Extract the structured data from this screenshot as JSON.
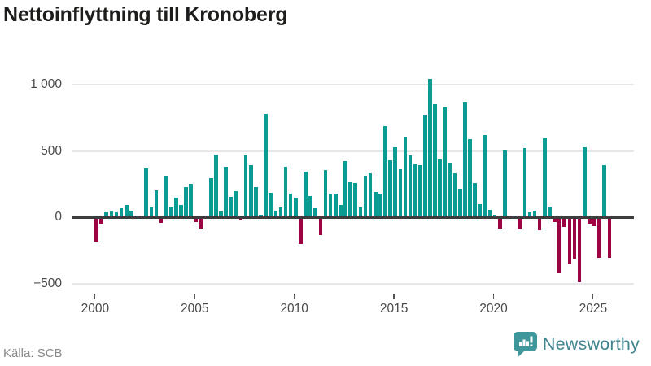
{
  "title": "Nettoinflyttning till Kronoberg",
  "source": "Källa: SCB",
  "logo": {
    "text": "Newsworthy",
    "icon": "newsworthy-bubble-chart-icon"
  },
  "colors": {
    "positive": "#0a9b93",
    "negative": "#9c0342",
    "grid": "#e7e7e7",
    "zero_line": "#3d3d3d",
    "axis_text": "#4a4a4a",
    "title_text": "#1d1d1b",
    "source_text": "#8a8a8a",
    "logo_text": "#40858f",
    "logo_icon": "#3d979b"
  },
  "chart_data": {
    "type": "bar",
    "title": "Nettoinflyttning till Kronoberg",
    "x_unit": "quarter",
    "grid": "horizontal",
    "legend": "none",
    "ylim": [
      -560,
      1120
    ],
    "y_ticks": [
      {
        "value": 1000,
        "label": "1 000"
      },
      {
        "value": 500,
        "label": "500"
      },
      {
        "value": 0,
        "label": "0"
      },
      {
        "value": -500,
        "label": "−500"
      }
    ],
    "x_ticks": [
      {
        "value": 2000,
        "label": "2000"
      },
      {
        "value": 2005,
        "label": "2005"
      },
      {
        "value": 2010,
        "label": "2010"
      },
      {
        "value": 2015,
        "label": "2015"
      },
      {
        "value": 2020,
        "label": "2020"
      },
      {
        "value": 2025,
        "label": "2025"
      }
    ],
    "categories": [
      "2000Q1",
      "2000Q2",
      "2000Q3",
      "2000Q4",
      "2001Q1",
      "2001Q2",
      "2001Q3",
      "2001Q4",
      "2002Q1",
      "2002Q2",
      "2002Q3",
      "2002Q4",
      "2003Q1",
      "2003Q2",
      "2003Q3",
      "2003Q4",
      "2004Q1",
      "2004Q2",
      "2004Q3",
      "2004Q4",
      "2005Q1",
      "2005Q2",
      "2005Q3",
      "2005Q4",
      "2006Q1",
      "2006Q2",
      "2006Q3",
      "2006Q4",
      "2007Q1",
      "2007Q2",
      "2007Q3",
      "2007Q4",
      "2008Q1",
      "2008Q2",
      "2008Q3",
      "2008Q4",
      "2009Q1",
      "2009Q2",
      "2009Q3",
      "2009Q4",
      "2010Q1",
      "2010Q2",
      "2010Q3",
      "2010Q4",
      "2011Q1",
      "2011Q2",
      "2011Q3",
      "2011Q4",
      "2012Q1",
      "2012Q2",
      "2012Q3",
      "2012Q4",
      "2013Q1",
      "2013Q2",
      "2013Q3",
      "2013Q4",
      "2014Q1",
      "2014Q2",
      "2014Q3",
      "2014Q4",
      "2015Q1",
      "2015Q2",
      "2015Q3",
      "2015Q4",
      "2016Q1",
      "2016Q2",
      "2016Q3",
      "2016Q4",
      "2017Q1",
      "2017Q2",
      "2017Q3",
      "2017Q4",
      "2018Q1",
      "2018Q2",
      "2018Q3",
      "2018Q4",
      "2019Q1",
      "2019Q2",
      "2019Q3",
      "2019Q4",
      "2020Q1",
      "2020Q2",
      "2020Q3",
      "2020Q4",
      "2021Q1",
      "2021Q2",
      "2021Q3",
      "2021Q4",
      "2022Q1",
      "2022Q2",
      "2022Q3",
      "2022Q4",
      "2023Q1",
      "2023Q2",
      "2023Q3",
      "2023Q4",
      "2024Q1",
      "2024Q2",
      "2024Q3",
      "2024Q4",
      "2025Q1",
      "2025Q2",
      "2025Q3",
      "2025Q4"
    ],
    "values": [
      -175,
      -45,
      35,
      45,
      35,
      70,
      90,
      50,
      10,
      0,
      370,
      75,
      200,
      -35,
      310,
      75,
      150,
      95,
      230,
      250,
      -30,
      -80,
      15,
      295,
      470,
      40,
      380,
      155,
      195,
      -15,
      465,
      395,
      230,
      20,
      780,
      185,
      50,
      75,
      380,
      180,
      150,
      -195,
      345,
      160,
      70,
      -130,
      355,
      175,
      180,
      90,
      425,
      265,
      260,
      75,
      310,
      330,
      190,
      180,
      690,
      430,
      530,
      360,
      605,
      465,
      400,
      390,
      775,
      1045,
      855,
      435,
      830,
      410,
      330,
      215,
      865,
      590,
      260,
      100,
      620,
      55,
      20,
      -80,
      505,
      0,
      10,
      -85,
      520,
      35,
      50,
      -90,
      595,
      80,
      -30,
      -415,
      -65,
      -345,
      -305,
      -485,
      530,
      -40,
      -60,
      -300,
      390,
      -300
    ]
  }
}
